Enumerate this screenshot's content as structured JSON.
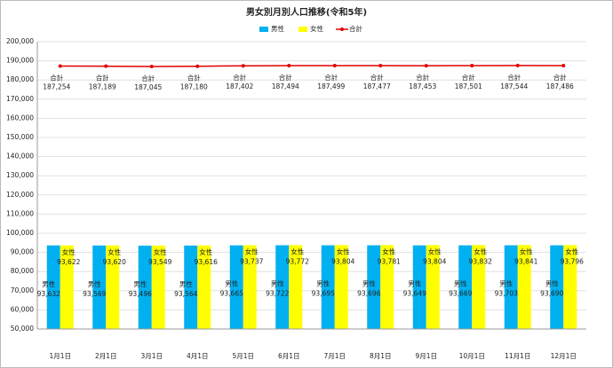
{
  "chart_data": {
    "type": "bar",
    "title": "男女別月別人口推移(令和5年)",
    "categories": [
      "1月1日",
      "2月1日",
      "3月1日",
      "4月1日",
      "5月1日",
      "6月1日",
      "7月1日",
      "8月1日",
      "9月1日",
      "10月1日",
      "11月1日",
      "12月1日"
    ],
    "series": [
      {
        "name": "男性",
        "color": "#00b0f0",
        "values": [
          93632,
          93569,
          93496,
          93564,
          93665,
          93722,
          93695,
          93696,
          93649,
          93669,
          93703,
          93690
        ],
        "value_labels": [
          "93,632",
          "93,569",
          "93,496",
          "93,564",
          "93,665",
          "93,722",
          "93,695",
          "93,696",
          "93,649",
          "93,669",
          "93,703",
          "93,690"
        ]
      },
      {
        "name": "女性",
        "color": "#ffff00",
        "values": [
          93622,
          93620,
          93549,
          93616,
          93737,
          93772,
          93804,
          93781,
          93804,
          93832,
          93841,
          93796
        ],
        "value_labels": [
          "93,622",
          "93,620",
          "93,549",
          "93,616",
          "93,737",
          "93,772",
          "93,804",
          "93,781",
          "93,804",
          "93,832",
          "93,841",
          "93,796"
        ]
      },
      {
        "name": "合計",
        "type": "line",
        "color": "#e00000",
        "values": [
          187254,
          187189,
          187045,
          187180,
          187402,
          187494,
          187499,
          187477,
          187453,
          187501,
          187544,
          187486
        ],
        "value_labels": [
          "187,254",
          "187,189",
          "187,045",
          "187,180",
          "187,402",
          "187,494",
          "187,499",
          "187,477",
          "187,453",
          "187,501",
          "187,544",
          "187,486"
        ]
      }
    ],
    "ylim": [
      50000,
      200000
    ],
    "yticks": [
      {
        "value": 50000,
        "label": "50,000"
      },
      {
        "value": 60000,
        "label": "60,000"
      },
      {
        "value": 70000,
        "label": "70,000"
      },
      {
        "value": 80000,
        "label": "80,000"
      },
      {
        "value": 90000,
        "label": "90,000"
      },
      {
        "value": 100000,
        "label": "100,000"
      },
      {
        "value": 110000,
        "label": "110,000"
      },
      {
        "value": 120000,
        "label": "120,000"
      },
      {
        "value": 130000,
        "label": "130,000"
      },
      {
        "value": 140000,
        "label": "140,000"
      },
      {
        "value": 150000,
        "label": "150,000"
      },
      {
        "value": 160000,
        "label": "160,000"
      },
      {
        "value": 170000,
        "label": "170,000"
      },
      {
        "value": 180000,
        "label": "180,000"
      },
      {
        "value": 190000,
        "label": "190,000"
      },
      {
        "value": 200000,
        "label": "200,000"
      }
    ],
    "grid": true
  }
}
